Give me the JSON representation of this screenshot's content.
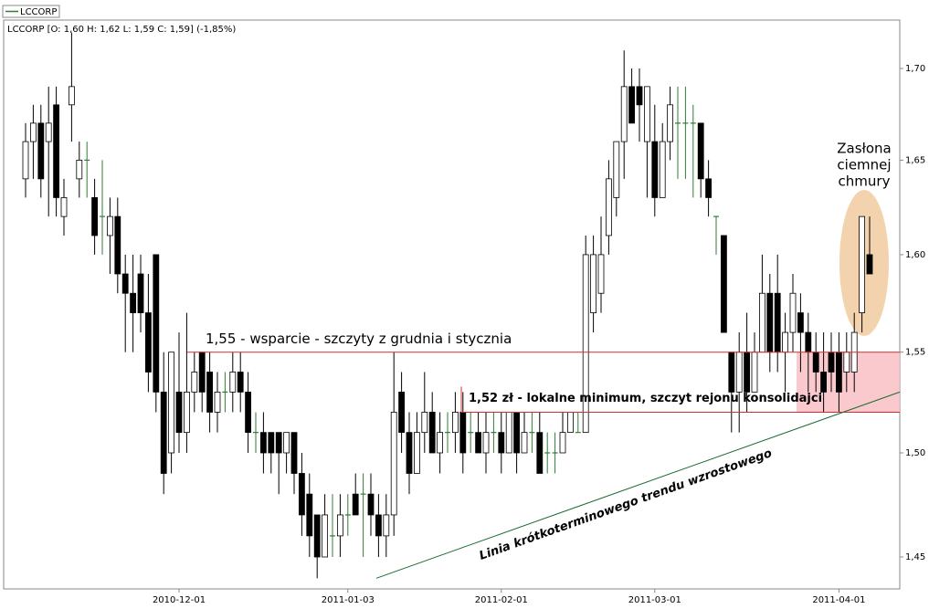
{
  "chart_data": {
    "type": "candlestick",
    "legend": "LCCORP",
    "info": "LCCORP [O: 1,60  H: 1,62  L: 1,59  C: 1,59] (-1,85%)",
    "log_scale": true,
    "grid": false,
    "up_color": "#ffffff",
    "down_color": "#000000",
    "flat_color": "#2e7d32",
    "categories": [
      null,
      null,
      null,
      null,
      null,
      null,
      null,
      null,
      null,
      null,
      null,
      null,
      null,
      null,
      null,
      null,
      null,
      null,
      null,
      null,
      "2010-12-01",
      null,
      null,
      null,
      null,
      null,
      null,
      null,
      null,
      null,
      null,
      null,
      null,
      null,
      null,
      null,
      null,
      null,
      null,
      null,
      null,
      null,
      "2011-01-03",
      null,
      null,
      null,
      null,
      null,
      null,
      null,
      null,
      null,
      null,
      null,
      null,
      null,
      null,
      null,
      null,
      null,
      null,
      null,
      "2011-02-01",
      null,
      null,
      null,
      null,
      null,
      null,
      null,
      null,
      null,
      null,
      null,
      null,
      null,
      null,
      null,
      null,
      null,
      null,
      null,
      "2011-03-01",
      null,
      null,
      null,
      null,
      null,
      null,
      null,
      null,
      null,
      null,
      null,
      null,
      null,
      null,
      null,
      null,
      null,
      null,
      null,
      null,
      null,
      null,
      null,
      "2011-04-01",
      null,
      null,
      null,
      null
    ],
    "open": [
      1.64,
      1.66,
      1.67,
      1.66,
      1.68,
      1.62,
      1.68,
      1.64,
      1.65,
      1.63,
      1.62,
      1.61,
      1.62,
      1.59,
      1.58,
      1.59,
      1.57,
      1.6,
      1.53,
      1.5,
      1.53,
      1.51,
      1.53,
      1.55,
      1.54,
      1.52,
      1.53,
      1.53,
      1.54,
      1.53,
      1.51,
      1.51,
      1.51,
      1.51,
      1.5,
      1.51,
      1.49,
      1.48,
      1.47,
      1.45,
      1.46,
      1.46,
      1.47,
      1.48,
      1.48,
      1.48,
      1.47,
      1.46,
      1.47,
      1.53,
      1.51,
      1.49,
      1.51,
      1.52,
      1.5,
      1.51,
      1.51,
      1.52,
      1.51,
      1.51,
      1.5,
      1.51,
      1.51,
      1.5,
      1.52,
      1.5,
      1.51,
      1.51,
      1.5,
      1.5,
      1.5,
      1.51,
      1.51,
      1.51,
      1.57,
      1.58,
      1.61,
      1.63,
      1.66,
      1.69,
      1.69,
      1.66,
      1.66,
      1.63,
      1.66,
      1.67,
      1.67,
      1.67,
      1.67,
      1.64,
      1.62,
      1.61,
      1.55,
      1.53,
      1.55,
      1.53,
      1.55,
      1.58,
      1.58,
      1.55,
      1.56,
      1.57,
      1.56,
      1.55,
      1.54,
      1.55,
      1.55,
      1.54,
      1.54,
      1.57,
      1.6
    ],
    "high": [
      1.67,
      1.68,
      1.68,
      1.69,
      1.69,
      1.64,
      1.72,
      1.66,
      1.66,
      1.64,
      1.65,
      1.63,
      1.63,
      1.6,
      1.6,
      1.6,
      1.59,
      1.6,
      1.55,
      1.55,
      1.56,
      1.57,
      1.55,
      1.55,
      1.55,
      1.54,
      1.54,
      1.55,
      1.55,
      1.54,
      1.52,
      1.52,
      1.51,
      1.51,
      1.51,
      1.51,
      1.5,
      1.49,
      1.47,
      1.48,
      1.48,
      1.48,
      1.48,
      1.49,
      1.49,
      1.49,
      1.48,
      1.48,
      1.55,
      1.54,
      1.52,
      1.52,
      1.54,
      1.53,
      1.52,
      1.52,
      1.53,
      1.53,
      1.52,
      1.52,
      1.52,
      1.52,
      1.52,
      1.52,
      1.52,
      1.52,
      1.52,
      1.52,
      1.51,
      1.51,
      1.52,
      1.52,
      1.52,
      1.61,
      1.61,
      1.62,
      1.65,
      1.66,
      1.71,
      1.7,
      1.7,
      1.69,
      1.68,
      1.67,
      1.69,
      1.69,
      1.69,
      1.68,
      1.67,
      1.65,
      1.62,
      1.61,
      1.55,
      1.56,
      1.57,
      1.56,
      1.6,
      1.59,
      1.6,
      1.57,
      1.59,
      1.58,
      1.57,
      1.56,
      1.56,
      1.56,
      1.56,
      1.56,
      1.57,
      1.62,
      1.62
    ],
    "low": [
      1.63,
      1.64,
      1.63,
      1.62,
      1.62,
      1.61,
      1.66,
      1.63,
      1.63,
      1.6,
      1.6,
      1.59,
      1.58,
      1.55,
      1.55,
      1.56,
      1.53,
      1.52,
      1.48,
      1.49,
      1.5,
      1.5,
      1.52,
      1.52,
      1.51,
      1.51,
      1.52,
      1.52,
      1.52,
      1.5,
      1.5,
      1.49,
      1.49,
      1.48,
      1.49,
      1.48,
      1.46,
      1.45,
      1.44,
      1.45,
      1.45,
      1.45,
      1.46,
      1.47,
      1.45,
      1.46,
      1.45,
      1.45,
      1.46,
      1.5,
      1.48,
      1.49,
      1.5,
      1.5,
      1.49,
      1.5,
      1.5,
      1.49,
      1.5,
      1.5,
      1.49,
      1.5,
      1.49,
      1.5,
      1.49,
      1.5,
      1.5,
      1.49,
      1.49,
      1.49,
      1.5,
      1.51,
      1.51,
      1.51,
      1.56,
      1.57,
      1.6,
      1.62,
      1.64,
      1.67,
      1.66,
      1.63,
      1.62,
      1.63,
      1.65,
      1.64,
      1.64,
      1.63,
      1.63,
      1.62,
      1.6,
      1.56,
      1.51,
      1.51,
      1.52,
      1.53,
      1.55,
      1.54,
      1.54,
      1.53,
      1.55,
      1.54,
      1.53,
      1.53,
      1.52,
      1.53,
      1.52,
      1.53,
      1.53,
      1.56,
      1.59
    ],
    "close": [
      1.66,
      1.67,
      1.64,
      1.67,
      1.63,
      1.63,
      1.69,
      1.65,
      1.65,
      1.61,
      1.62,
      1.62,
      1.59,
      1.58,
      1.57,
      1.57,
      1.54,
      1.53,
      1.49,
      1.55,
      1.51,
      1.53,
      1.54,
      1.53,
      1.52,
      1.53,
      1.53,
      1.54,
      1.53,
      1.51,
      1.51,
      1.5,
      1.5,
      1.5,
      1.51,
      1.49,
      1.47,
      1.46,
      1.45,
      1.47,
      1.46,
      1.47,
      1.47,
      1.47,
      1.48,
      1.47,
      1.46,
      1.47,
      1.52,
      1.51,
      1.49,
      1.51,
      1.52,
      1.5,
      1.51,
      1.51,
      1.52,
      1.5,
      1.51,
      1.5,
      1.51,
      1.51,
      1.5,
      1.52,
      1.5,
      1.51,
      1.51,
      1.49,
      1.5,
      1.5,
      1.51,
      1.52,
      1.51,
      1.6,
      1.6,
      1.6,
      1.64,
      1.66,
      1.69,
      1.67,
      1.68,
      1.69,
      1.63,
      1.66,
      1.68,
      1.67,
      1.67,
      1.67,
      1.64,
      1.63,
      1.62,
      1.56,
      1.53,
      1.55,
      1.53,
      1.55,
      1.58,
      1.55,
      1.55,
      1.56,
      1.58,
      1.56,
      1.55,
      1.54,
      1.53,
      1.54,
      1.53,
      1.55,
      1.56,
      1.62,
      1.59
    ],
    "ylim": [
      1.435,
      1.727
    ],
    "yticks": [
      {
        "value": 1.45,
        "label": "1,45"
      },
      {
        "value": 1.5,
        "label": "1,50"
      },
      {
        "value": 1.55,
        "label": "1,55"
      },
      {
        "value": 1.6,
        "label": "1,60"
      },
      {
        "value": 1.65,
        "label": "1,65"
      },
      {
        "value": 1.7,
        "label": "1,70"
      }
    ],
    "support": {
      "value": 1.55,
      "label": "1,55 - wsparcie - szczyty z grudnia i stycznia"
    },
    "local_min": {
      "value": 1.52,
      "label": "1,52 zł - lokalne minimum, szczyt rejonu konsolidajci"
    },
    "trendline": {
      "values": [
        1.44,
        1.53
      ],
      "label": "Linia krótkoterminowego trendu wzrostowego"
    },
    "pattern": [
      "Zasłona",
      "ciemnej",
      "chmury"
    ]
  }
}
